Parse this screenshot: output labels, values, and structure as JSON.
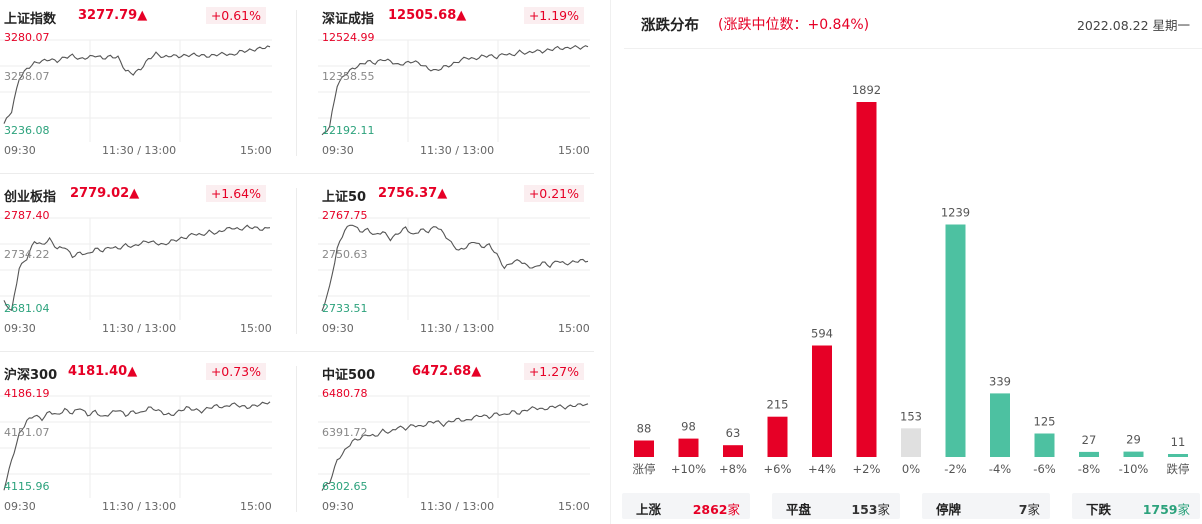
{
  "index_panels": [
    {
      "name": "上证指数",
      "value": "3277.79",
      "change": "+0.61%",
      "high": "3280.07",
      "mid": "3258.07",
      "low": "3236.08",
      "times": [
        "09:30",
        "11:30 / 13:00",
        "15:00"
      ]
    },
    {
      "name": "深证成指",
      "value": "12505.68",
      "change": "+1.19%",
      "high": "12524.99",
      "mid": "12358.55",
      "low": "12192.11",
      "times": [
        "09:30",
        "11:30 / 13:00",
        "15:00"
      ]
    },
    {
      "name": "创业板指",
      "value": "2779.02",
      "change": "+1.64%",
      "high": "2787.40",
      "mid": "2734.22",
      "low": "2681.04",
      "times": [
        "09:30",
        "11:30 / 13:00",
        "15:00"
      ]
    },
    {
      "name": "上证50",
      "value": "2756.37",
      "change": "+0.21%",
      "high": "2767.75",
      "mid": "2750.63",
      "low": "2733.51",
      "times": [
        "09:30",
        "11:30 / 13:00",
        "15:00"
      ]
    },
    {
      "name": "沪深300",
      "value": "4181.40",
      "change": "+0.73%",
      "high": "4186.19",
      "mid": "4151.07",
      "low": "4115.96",
      "times": [
        "09:30",
        "11:30 / 13:00",
        "15:00"
      ]
    },
    {
      "name": "中证500",
      "value": "6472.68",
      "change": "+1.27%",
      "high": "6480.78",
      "mid": "6391.72",
      "low": "6302.65",
      "times": [
        "09:30",
        "11:30 / 13:00",
        "15:00"
      ]
    }
  ],
  "up_arrow": "▲",
  "distribution": {
    "title": "涨跌分布",
    "median_label": "(涨跌中位数：+0.84%)",
    "date": "2022.08.22 星期一"
  },
  "chart_data": {
    "type": "bar",
    "categories": [
      "涨停",
      "+10%",
      "+8%",
      "+6%",
      "+4%",
      "+2%",
      "0%",
      "-2%",
      "-4%",
      "-6%",
      "-8%",
      "-10%",
      "跌停"
    ],
    "values": [
      88,
      98,
      63,
      215,
      594,
      1892,
      153,
      1239,
      339,
      125,
      27,
      29,
      11
    ],
    "ylim": [
      0,
      1892
    ],
    "grid": false,
    "legend": "none",
    "colors": {
      "up": "#e60026",
      "flat": "#e0e0e0",
      "down": "#4dc1a1",
      "text": "#555555"
    }
  },
  "summary": [
    {
      "label": "上涨",
      "value": "2862",
      "unit": "家",
      "tone": "up"
    },
    {
      "label": "平盘",
      "value": "153",
      "unit": "家",
      "tone": "flat"
    },
    {
      "label": "停牌",
      "value": "7",
      "unit": "家",
      "tone": "flat"
    },
    {
      "label": "下跌",
      "value": "1759",
      "unit": "家",
      "tone": "down"
    }
  ]
}
